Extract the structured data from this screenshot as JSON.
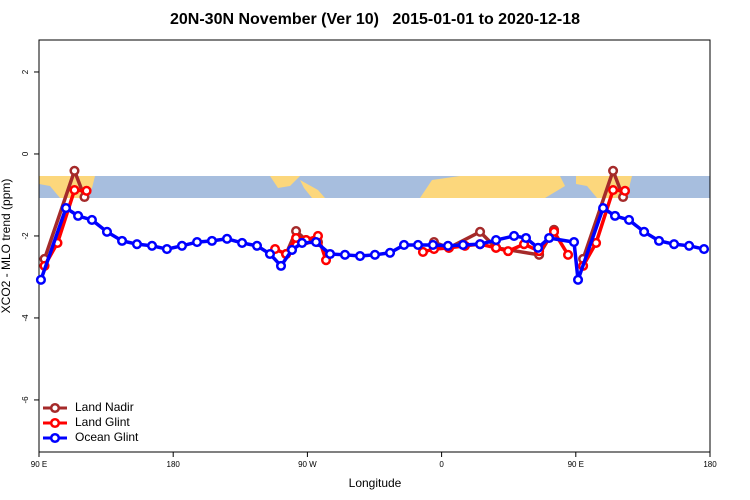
{
  "chart_data": {
    "type": "line",
    "title": "20N-30N November (Ver 10)   2015-01-01 to 2020-12-18",
    "x_label": "Longitude",
    "y_label": "XCO2 - MLO trend (ppm)",
    "xlim": [
      90,
      540
    ],
    "xticks": [
      {
        "value": 90,
        "label": "90 E"
      },
      {
        "value": 180,
        "label": "180"
      },
      {
        "value": 270,
        "label": "90 W"
      },
      {
        "value": 360,
        "label": "0"
      },
      {
        "value": 450,
        "label": "90 E"
      },
      {
        "value": 540,
        "label": "180"
      }
    ],
    "ylim": [
      -7.27,
      2.78
    ],
    "yticks": [
      2,
      0,
      -2,
      -4,
      -6
    ],
    "legend": "bottom-left",
    "series": [
      {
        "name": "Land Nadir",
        "color": "#a52a2a",
        "x": [
          93.7,
          113.8,
          120.5,
          null,
          255.7,
          262.4,
          269.1,
          277.1,
          null,
          354.9,
          364.9,
          385.8,
          396.5,
          425.4,
          435.4,
          null,
          454.9,
          475.0,
          481.7
        ],
        "values": [
          -2.56,
          -0.41,
          -1.05,
          null,
          -2.44,
          -1.88,
          -2.1,
          -2.15,
          null,
          -2.15,
          -2.29,
          -1.9,
          -2.29,
          -2.46,
          -1.85,
          null,
          -2.56,
          -0.41,
          -1.05
        ]
      },
      {
        "name": "Land Glint",
        "color": "#ff0000",
        "x": [
          93.7,
          102.4,
          113.8,
          121.9,
          null,
          248.3,
          255.7,
          262.4,
          269.1,
          277.1,
          282.5,
          null,
          347.5,
          354.9,
          364.9,
          375.7,
          385.8,
          396.5,
          404.6,
          415.3,
          425.4,
          435.4,
          444.8,
          null,
          454.9,
          463.6,
          475.0,
          483.0
        ],
        "values": [
          -2.73,
          -2.17,
          -0.88,
          -0.9,
          null,
          -2.32,
          -2.44,
          -2.05,
          -2.1,
          -2.0,
          -2.59,
          null,
          -2.39,
          -2.32,
          -2.29,
          -2.24,
          -2.2,
          -2.29,
          -2.37,
          -2.2,
          -2.37,
          -1.9,
          -2.46,
          null,
          -2.73,
          -2.17,
          -0.88,
          -0.9
        ]
      },
      {
        "name": "Ocean Glint",
        "color": "#0000ff",
        "x": [
          91.3,
          108.1,
          116.2,
          125.5,
          135.6,
          145.7,
          155.7,
          165.8,
          175.8,
          185.9,
          196.0,
          206.0,
          216.1,
          226.2,
          236.2,
          244.9,
          252.3,
          259.7,
          266.4,
          275.8,
          285.2,
          295.2,
          305.3,
          315.3,
          325.4,
          334.8,
          344.2,
          354.2,
          364.3,
          374.4,
          385.8,
          396.5,
          408.6,
          416.6,
          424.7,
          432.1,
          448.8,
          451.5,
          468.3,
          476.3,
          485.7,
          495.8,
          505.8,
          515.9,
          526.0,
          536.0
        ],
        "values": [
          -3.07,
          -1.32,
          -1.51,
          -1.61,
          -1.9,
          -2.12,
          -2.2,
          -2.24,
          -2.32,
          -2.24,
          -2.15,
          -2.12,
          -2.07,
          -2.17,
          -2.24,
          -2.44,
          -2.73,
          -2.34,
          -2.17,
          -2.15,
          -2.44,
          -2.46,
          -2.49,
          -2.46,
          -2.41,
          -2.22,
          -2.22,
          -2.22,
          -2.24,
          -2.22,
          -2.2,
          -2.1,
          -2.0,
          -2.05,
          -2.29,
          -2.05,
          -2.15,
          -3.07,
          -1.32,
          -1.51,
          -1.61,
          -1.9,
          -2.12,
          -2.2,
          -2.24,
          -2.32
        ]
      }
    ]
  }
}
